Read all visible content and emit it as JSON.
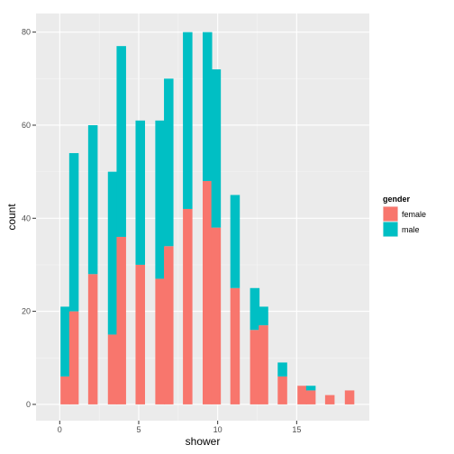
{
  "chart_data": {
    "type": "bar",
    "stacked": true,
    "xlabel": "shower",
    "ylabel": "count",
    "xlim": [
      -1.5,
      19.6
    ],
    "ylim": [
      -3.5,
      84
    ],
    "bar_width": 0.6,
    "x_ticks": [
      0,
      5,
      10,
      15
    ],
    "y_ticks": [
      0,
      20,
      40,
      60,
      80
    ],
    "x": [
      0.35,
      0.9,
      2.1,
      3.35,
      3.9,
      5.1,
      6.35,
      6.9,
      8.1,
      9.35,
      9.9,
      11.1,
      12.35,
      12.9,
      14.1,
      15.35,
      15.9,
      17.1,
      18.35
    ],
    "series": [
      {
        "name": "female",
        "color": "#F8766D",
        "values": [
          6,
          20,
          28,
          15,
          36,
          30,
          27,
          34,
          42,
          48,
          38,
          25,
          16,
          17,
          6,
          4,
          3,
          2,
          3
        ]
      },
      {
        "name": "male",
        "color": "#00BFC4",
        "values": [
          15,
          34,
          32,
          35,
          41,
          31,
          34,
          36,
          38,
          32,
          34,
          20,
          9,
          4,
          3,
          0,
          1,
          0,
          0
        ]
      }
    ],
    "legend": {
      "title": "gender",
      "position": "right",
      "items": [
        {
          "label": "female",
          "color": "#F8766D"
        },
        {
          "label": "male",
          "color": "#00BFC4"
        }
      ]
    },
    "grid": true,
    "panel_background": "#EBEBEB"
  }
}
